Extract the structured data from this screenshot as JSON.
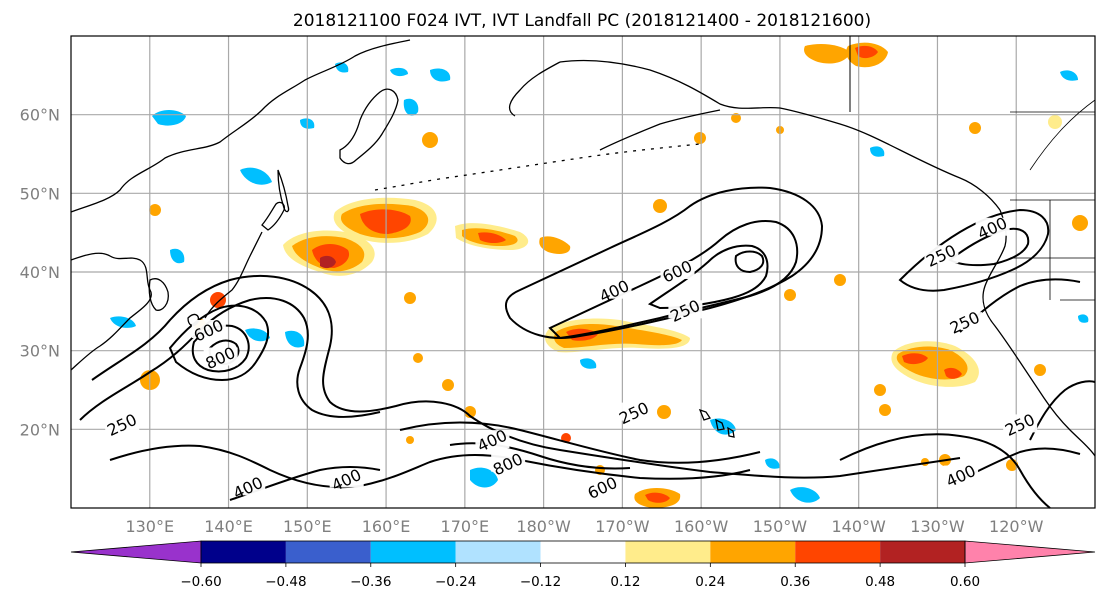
{
  "title": "2018121100 F024 IVT, IVT Landfall PC (2018121400 - 2018121600)",
  "map": {
    "lon_range": [
      120,
      250
    ],
    "lat_range": [
      10,
      70
    ],
    "lat_ticks": [
      {
        "value": 60,
        "label": "60°N"
      },
      {
        "value": 50,
        "label": "50°N"
      },
      {
        "value": 40,
        "label": "40°N"
      },
      {
        "value": 30,
        "label": "30°N"
      },
      {
        "value": 20,
        "label": "20°N"
      }
    ],
    "lon_ticks": [
      {
        "value": 130,
        "label": "130°E"
      },
      {
        "value": 140,
        "label": "140°E"
      },
      {
        "value": 150,
        "label": "150°E"
      },
      {
        "value": 160,
        "label": "160°E"
      },
      {
        "value": 170,
        "label": "170°E"
      },
      {
        "value": 180,
        "label": "180°W"
      },
      {
        "value": 190,
        "label": "170°W"
      },
      {
        "value": 200,
        "label": "160°W"
      },
      {
        "value": 210,
        "label": "150°W"
      },
      {
        "value": 220,
        "label": "140°W"
      },
      {
        "value": 230,
        "label": "130°W"
      },
      {
        "value": 240,
        "label": "120°W"
      }
    ],
    "grid": true,
    "grid_lines_lon": [
      130,
      140,
      150,
      160,
      170,
      180,
      190,
      200,
      210,
      220,
      230,
      240
    ],
    "grid_lines_lat": [
      20,
      30,
      40,
      50,
      60
    ]
  },
  "ivt_contours": [
    {
      "value": "250",
      "label_at": [
        126.5,
        20.5
      ]
    },
    {
      "value": "400",
      "label_at": [
        142.5,
        12.5
      ]
    },
    {
      "value": "400",
      "label_at": [
        155,
        13.5
      ]
    },
    {
      "value": "400",
      "label_at": [
        173.5,
        18.5
      ]
    },
    {
      "value": "800",
      "label_at": [
        175.5,
        15.5
      ]
    },
    {
      "value": "600",
      "label_at": [
        187.5,
        12.5
      ]
    },
    {
      "value": "250",
      "label_at": [
        191.5,
        22
      ]
    },
    {
      "value": "400",
      "label_at": [
        189,
        37.5
      ]
    },
    {
      "value": "600",
      "label_at": [
        197,
        40
      ]
    },
    {
      "value": "250",
      "label_at": [
        198,
        35
      ]
    },
    {
      "value": "600",
      "label_at": [
        137.5,
        32.5
      ]
    },
    {
      "value": "800",
      "label_at": [
        139,
        29
      ]
    },
    {
      "value": "250",
      "label_at": [
        230.5,
        42
      ]
    },
    {
      "value": "400",
      "label_at": [
        237,
        45.5
      ]
    },
    {
      "value": "250",
      "label_at": [
        233.5,
        33.5
      ]
    },
    {
      "value": "250",
      "label_at": [
        240.5,
        20.5
      ]
    },
    {
      "value": "400",
      "label_at": [
        233,
        14
      ]
    }
  ],
  "colorbar": {
    "boundaries": [
      -0.6,
      -0.48,
      -0.36,
      -0.24,
      -0.12,
      0.12,
      0.24,
      0.36,
      0.48,
      0.6
    ],
    "tick_labels": [
      "−0.60",
      "−0.48",
      "−0.36",
      "−0.24",
      "−0.12",
      "0.12",
      "0.24",
      "0.36",
      "0.48",
      "0.60"
    ],
    "colors": [
      "#9932cc",
      "#00008b",
      "#3a5fcd",
      "#00bfff",
      "#b0e2ff",
      "#ffffff",
      "#ffec8b",
      "#ffa500",
      "#ff4500",
      "#b22222",
      "#ff82ab"
    ],
    "extend": "both"
  },
  "colors": {
    "contour": "#000000",
    "coast": "#000000",
    "grid": "#a9a9a9",
    "axis_tick_text": "#7f7f7f"
  }
}
